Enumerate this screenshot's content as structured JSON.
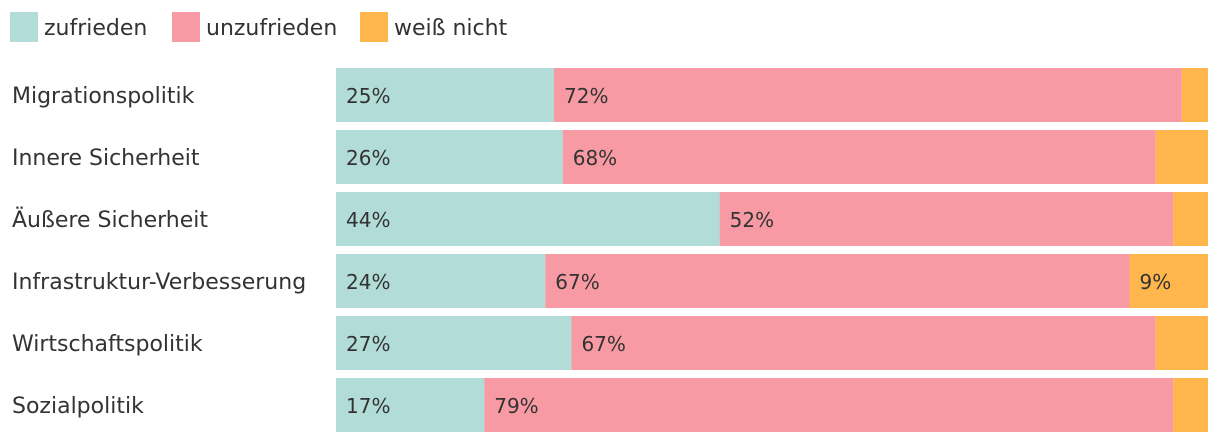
{
  "chart_data": {
    "type": "bar",
    "orientation": "horizontal",
    "stacked": true,
    "title": "",
    "xlabel": "",
    "ylabel": "",
    "xlim": [
      0,
      100
    ],
    "legend_position": "top-left",
    "grid": false,
    "categories": [
      "Migrationspolitik",
      "Innere Sicherheit",
      "Äußere Sicherheit",
      "Infrastruktur-Verbesserung",
      "Wirtschaftspolitik",
      "Sozialpolitik"
    ],
    "series": [
      {
        "name": "zufrieden",
        "color": "#b2dcd8",
        "values": [
          25,
          26,
          44,
          24,
          27,
          17
        ],
        "labels": [
          "25%",
          "26%",
          "44%",
          "24%",
          "27%",
          "17%"
        ]
      },
      {
        "name": "unzufrieden",
        "color": "#f89aa4",
        "values": [
          72,
          68,
          52,
          67,
          67,
          79
        ],
        "labels": [
          "72%",
          "68%",
          "52%",
          "67%",
          "67%",
          "79%"
        ]
      },
      {
        "name": "weiß nicht",
        "color": "#ffb74d",
        "values": [
          3,
          6,
          4,
          9,
          6,
          4
        ],
        "labels": [
          "",
          "",
          "",
          "9%",
          "",
          ""
        ]
      }
    ]
  }
}
